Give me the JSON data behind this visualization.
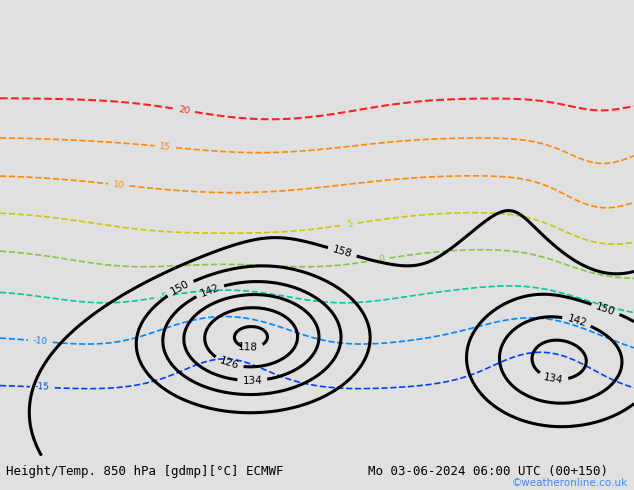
{
  "title_left": "Height/Temp. 850 hPa [gdmp][°C] ECMWF",
  "title_right": "Mo 03-06-2024 06:00 UTC (00+150)",
  "watermark": "©weatheronline.co.uk",
  "bg_color_ocean": "#d4dce4",
  "bg_color_land": "#c8e8b0",
  "bg_color_bar": "#e0e0e0",
  "title_fontsize": 9.0,
  "watermark_color": "#4488ff",
  "fig_width": 6.34,
  "fig_height": 4.9,
  "dpi": 100,
  "lon_min": -105,
  "lon_max": 22,
  "lat_min": -68,
  "lat_max": 16,
  "levels_z": [
    118,
    126,
    134,
    142,
    150,
    158
  ],
  "temp_levels": [
    -15,
    -10,
    -5,
    0,
    5,
    10,
    15,
    20
  ],
  "temp_colors": [
    "#0040ff",
    "#0088ff",
    "#00c8a0",
    "#80c840",
    "#c8c800",
    "#ff8800",
    "#ff8800",
    "#ff2020"
  ],
  "temp_linewidths": [
    1.2,
    1.2,
    1.2,
    1.2,
    1.2,
    1.2,
    1.2,
    1.5
  ]
}
